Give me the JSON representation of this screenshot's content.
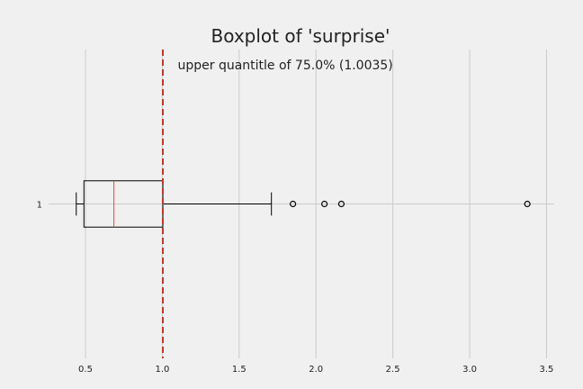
{
  "chart_data": {
    "type": "boxplot",
    "title": "Boxplot of 'surprise'",
    "orientation": "horizontal",
    "xlim": [
      0.26,
      3.55
    ],
    "xticks": [
      0.5,
      1.0,
      1.5,
      2.0,
      2.5,
      3.0,
      3.5
    ],
    "xtick_labels": [
      "0.5",
      "1.0",
      "1.5",
      "2.0",
      "2.5",
      "3.0",
      "3.5"
    ],
    "yticks": [
      "1"
    ],
    "grid": true,
    "boxes": [
      {
        "category": "1",
        "whisker_low": 0.44,
        "q1": 0.49,
        "median": 0.685,
        "q3": 1.0035,
        "whisker_high": 1.71,
        "outliers": [
          1.85,
          2.055,
          2.165,
          3.375
        ]
      }
    ],
    "reference_line": {
      "x": 1.0035,
      "style": "dashed",
      "color": "#c0392b"
    },
    "annotation": {
      "text": "upper quantitle of 75.0% (1.0035)",
      "x": 1.1,
      "y_level": 0.55
    },
    "colors": {
      "median": "#e24a33",
      "box": "#000000",
      "outlier": "#000000"
    }
  }
}
